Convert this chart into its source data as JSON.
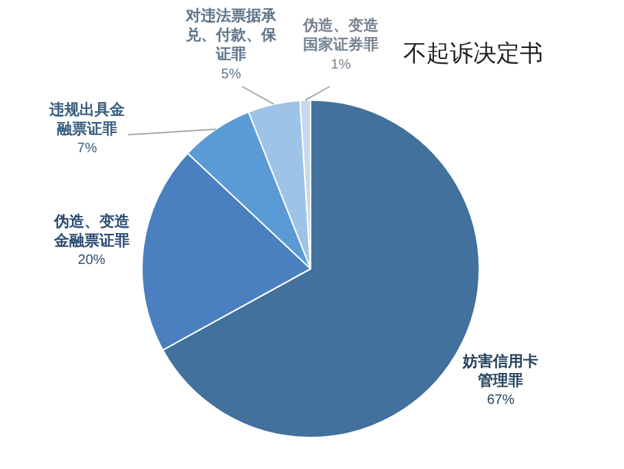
{
  "chart_data": {
    "type": "pie",
    "title": "不起诉决定书",
    "categories": [
      "妨害信用卡管理罪",
      "伪造、变造金融票证罪",
      "违规出具金融票证罪",
      "对违法票据承兑、付款、保证罪",
      "伪造、变造国家证券罪"
    ],
    "values": [
      67,
      20,
      7,
      5,
      1
    ],
    "value_labels": [
      "67%",
      "20%",
      "7%",
      "5%",
      "1%"
    ],
    "colors": [
      "#41719c",
      "#4a7fc0",
      "#5b9bd5",
      "#9dc3e6",
      "#c5d9ee"
    ],
    "legend": false
  }
}
